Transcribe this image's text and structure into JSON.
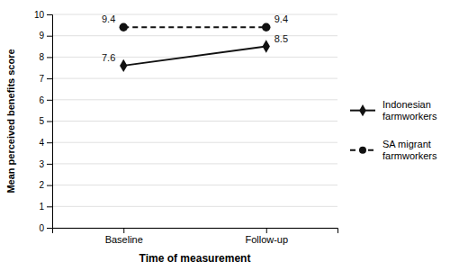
{
  "chart_data": {
    "type": "line",
    "categories": [
      "Baseline",
      "Follow-up"
    ],
    "series": [
      {
        "name": "Indonesian\nfarmworkers",
        "color": "#111111",
        "values": [
          7.6,
          8.5
        ],
        "line_style": "solid",
        "marker": "diamond"
      },
      {
        "name": "SA migrant\nfarmworkers",
        "color": "#111111",
        "values": [
          9.4,
          9.4
        ],
        "line_style": "dashed",
        "marker": "circle"
      }
    ],
    "xlabel": "Time of measurement",
    "ylabel": "Mean perceived benefits score",
    "ylim": [
      0,
      10
    ],
    "yticks": [
      0,
      1,
      2,
      3,
      4,
      5,
      6,
      7,
      8,
      9,
      10
    ],
    "grid": true,
    "legend": "right",
    "data_labels": true
  }
}
